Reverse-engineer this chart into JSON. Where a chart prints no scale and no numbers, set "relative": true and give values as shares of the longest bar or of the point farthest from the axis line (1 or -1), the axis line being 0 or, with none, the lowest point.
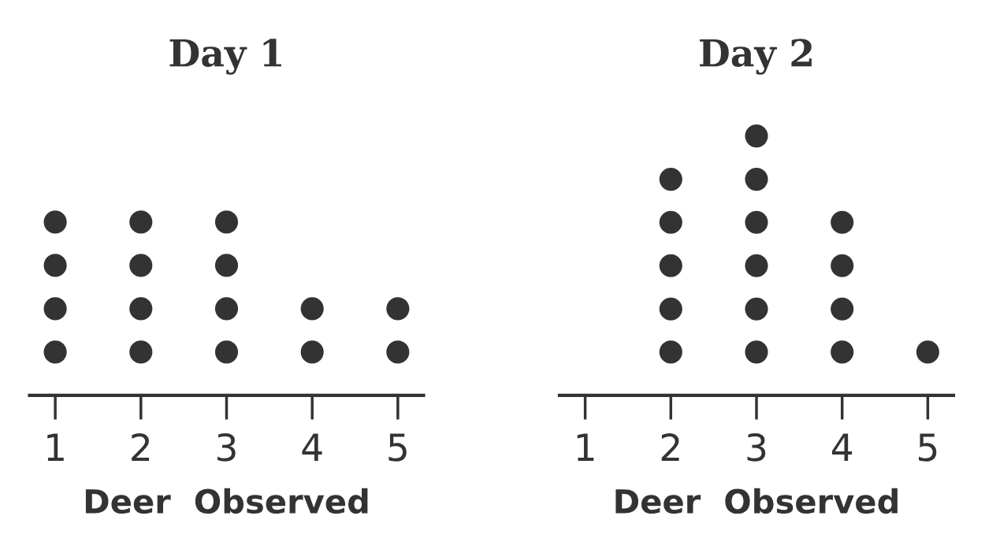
{
  "chart_data": [
    {
      "type": "scatter",
      "title": "Day 1",
      "xlabel": "Deer  Observed",
      "relative": true,
      "x": [
        1,
        1,
        1,
        1,
        2,
        2,
        2,
        2,
        3,
        3,
        3,
        3,
        4,
        4,
        5,
        5
      ],
      "values": [
        0.25,
        0.5,
        0.75,
        1,
        0.25,
        0.5,
        0.75,
        1,
        0.25,
        0.5,
        0.75,
        1,
        0.25,
        0.5,
        0.25,
        0.5
      ],
      "color": "#333333",
      "marker": "circle",
      "xlim": [
        0.7,
        5.3
      ],
      "xticks": [
        1,
        2,
        3,
        4,
        5
      ],
      "tick_labels": "x"
    },
    {
      "type": "scatter",
      "title": "Day 2",
      "xlabel": "Deer  Observed",
      "relative": true,
      "x": [
        2,
        2,
        2,
        2,
        2,
        3,
        3,
        3,
        3,
        3,
        3,
        4,
        4,
        4,
        4,
        5
      ],
      "values": [
        0.167,
        0.333,
        0.5,
        0.667,
        0.833,
        0.167,
        0.333,
        0.5,
        0.667,
        0.833,
        1,
        0.167,
        0.333,
        0.5,
        0.667,
        0.167
      ],
      "color": "#333333",
      "marker": "circle",
      "xlim": [
        0.7,
        5.3
      ],
      "xticks": [
        1,
        2,
        3,
        4,
        5
      ],
      "tick_labels": "x"
    }
  ]
}
